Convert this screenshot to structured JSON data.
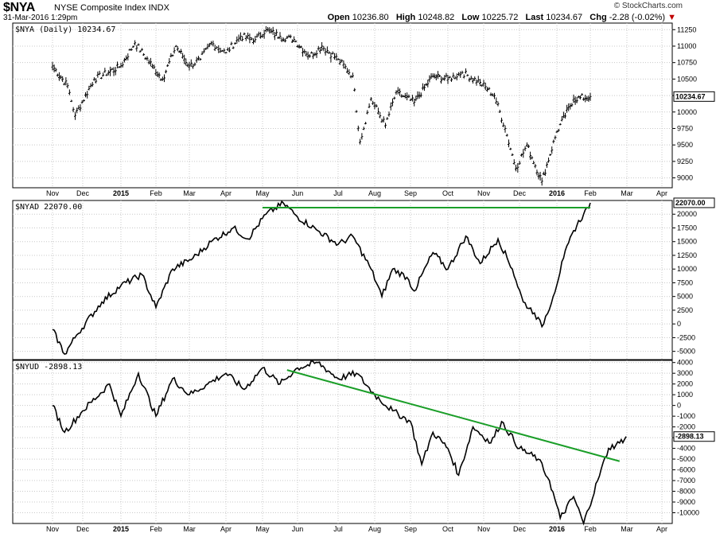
{
  "header": {
    "symbol": "$NYA",
    "name": "NYSE Composite Index",
    "exchange": "INDX",
    "datetime": "31-Mar-2016 1:29pm",
    "source": "© StockCharts.com",
    "open_label": "Open",
    "open": "10236.80",
    "high_label": "High",
    "high": "10248.82",
    "low_label": "Low",
    "low": "10225.72",
    "last_label": "Last",
    "last": "10234.67",
    "chg_label": "Chg",
    "chg": "-2.28 (-0.02%)",
    "chg_arrow": "▼"
  },
  "colors": {
    "trend": "#1a9e28",
    "line": "#000000",
    "grid": "#c8c8c8"
  },
  "x_axis": {
    "months": [
      "Nov",
      "Dec",
      "2015",
      "Feb",
      "Mar",
      "Apr",
      "May",
      "Jun",
      "Jul",
      "Aug",
      "Sep",
      "Oct",
      "Nov",
      "Dec",
      "2016",
      "Feb",
      "Mar",
      "Apr"
    ],
    "bold": [
      "2015",
      "2016"
    ]
  },
  "chart_data": [
    {
      "type": "line",
      "style": "ohlc",
      "title": "$NYA (Daily) 10234.67",
      "last_label": "10234.67",
      "ylim": [
        8850,
        11350
      ],
      "yticks": [
        11250,
        11000,
        10750,
        10500,
        10250,
        10000,
        9750,
        9500,
        9250,
        9000
      ],
      "x_months": [
        0,
        1,
        2,
        3,
        4,
        5,
        6,
        7,
        8,
        9,
        10,
        11,
        12,
        13,
        14,
        15,
        16,
        17
      ],
      "values": [
        10700,
        10400,
        9950,
        10500,
        10700,
        11050,
        10700,
        10500,
        11000,
        10700,
        10800,
        11050,
        10900,
        11150,
        11100,
        11250,
        11150,
        11100,
        10850,
        11000,
        10800,
        10550,
        9550,
        10200,
        9800,
        10300,
        10150,
        10550,
        10500,
        10600,
        10450,
        10250,
        9750,
        9150,
        9500,
        8950,
        9700,
        10200,
        10234.67
      ],
      "x_anchors": [
        0.0,
        0.5,
        0.75,
        1.3,
        2.0,
        2.4,
        2.9,
        3.2,
        3.6,
        4.0,
        4.3,
        4.6,
        5.0,
        5.4,
        5.8,
        6.1,
        6.5,
        6.9,
        7.3,
        7.6,
        8.0,
        8.4,
        8.6,
        8.9,
        9.3,
        9.6,
        10.1,
        10.6,
        11.0,
        11.4,
        11.9,
        12.3,
        12.6,
        12.9,
        13.2,
        13.6,
        14.0,
        14.5,
        15.0
      ]
    },
    {
      "type": "line",
      "title": "$NYAD 22070.00",
      "last_label": "22070.00",
      "ylim": [
        -6500,
        22500
      ],
      "yticks": [
        20000,
        17500,
        15000,
        12500,
        10000,
        7500,
        5000,
        2500,
        0,
        -2500,
        -5000
      ],
      "values": [
        -1000,
        -5500,
        -2000,
        4000,
        7000,
        9000,
        3000,
        10000,
        12000,
        15000,
        17500,
        15500,
        20000,
        22000,
        19500,
        17000,
        14500,
        16000,
        10000,
        5000,
        10000,
        8500,
        6000,
        13000,
        10000,
        16000,
        11000,
        15500,
        10000,
        4000,
        2000,
        -500,
        5000,
        12000,
        17000,
        20000,
        22070
      ],
      "x_anchors": [
        0.0,
        0.4,
        0.8,
        1.5,
        2.0,
        2.6,
        3.0,
        3.5,
        4.1,
        4.6,
        5.2,
        5.6,
        6.1,
        6.6,
        7.0,
        7.5,
        8.0,
        8.4,
        8.9,
        9.2,
        9.5,
        9.9,
        10.1,
        10.6,
        11.0,
        11.5,
        11.9,
        12.4,
        12.8,
        13.1,
        13.4,
        13.6,
        13.9,
        14.2,
        14.5,
        14.8,
        15.0
      ],
      "trend": {
        "from_x": 6.0,
        "from_y": 21200,
        "to_x": 15.0,
        "to_y": 21200
      }
    },
    {
      "type": "line",
      "title": "$NYUD -2898.13",
      "last_label": "-2898.13",
      "ylim": [
        -11000,
        4200
      ],
      "yticks": [
        4000,
        3000,
        2000,
        1000,
        0,
        -1000,
        -2000,
        -3000,
        -4000,
        -5000,
        -6000,
        -7000,
        -8000,
        -9000,
        -10000
      ],
      "values": [
        0,
        -2500,
        -500,
        2000,
        -1000,
        3000,
        -1000,
        2500,
        1000,
        2000,
        3000,
        1500,
        3500,
        2000,
        3500,
        4000,
        2500,
        3000,
        1000,
        -500,
        -1500,
        -5500,
        -2500,
        -4000,
        -6500,
        -2000,
        -3500,
        -1500,
        -4000,
        -5000,
        -7000,
        -10500,
        -8500,
        -11000,
        -7000,
        -4000,
        -3500,
        -2898.13
      ],
      "x_anchors": [
        0.0,
        0.4,
        1.0,
        1.7,
        2.0,
        2.5,
        3.0,
        3.5,
        4.0,
        4.5,
        5.0,
        5.5,
        6.0,
        6.5,
        7.0,
        7.5,
        8.0,
        8.5,
        9.0,
        9.5,
        10.0,
        10.3,
        10.6,
        11.0,
        11.3,
        11.7,
        12.2,
        12.5,
        13.0,
        13.5,
        13.8,
        14.1,
        14.5,
        14.8,
        15.2,
        15.5,
        15.8,
        15.98
      ],
      "trend": {
        "from_x": 6.7,
        "from_y": 3300,
        "to_x": 15.8,
        "to_y": -5200
      }
    }
  ]
}
